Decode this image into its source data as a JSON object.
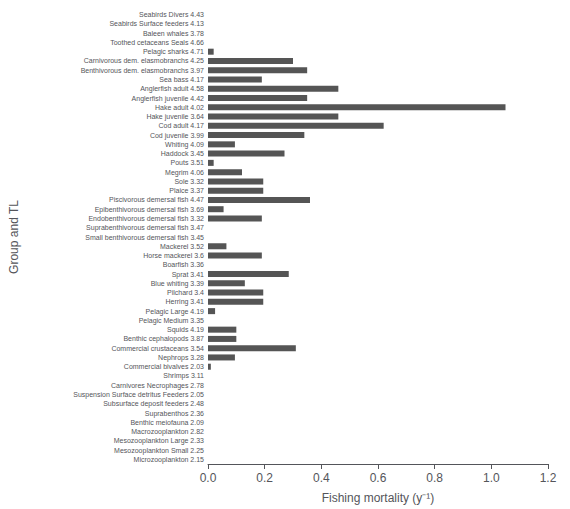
{
  "chart_data": {
    "type": "bar",
    "orientation": "horizontal",
    "xlabel": "Fishing mortality (y⁻¹)",
    "ylabel": "Group and TL",
    "categories": [
      "Seabirds Divers 4.43",
      "Seabirds Surface feeders 4.13",
      "Baleen whales 3.78",
      "Toothed cetaceans Seals 4.66",
      "Pelagic sharks 4.71",
      "Carnivorous dem. elasmobranchs 4.25",
      "Benthivorous dem. elasmobranchs 3.97",
      "Sea bass 4.17",
      "Anglerfish adult 4.58",
      "Anglerfish juvenile 4.42",
      "Hake adult 4.02",
      "Hake juvenile 3.64",
      "Cod adult 4.17",
      "Cod juvenile 3.99",
      "Whiting 4.09",
      "Haddock 3.45",
      "Pouts 3.51",
      "Megrim 4.06",
      "Sole 3.32",
      "Plaice 3.37",
      "Piscivorous demersal fish 4.47",
      "Epibenthivorous demersal fish 3.69",
      "Endobenthivorous demersal fish 3.32",
      "Suprabenthivorous demersal fish 3.47",
      "Small benthivorous demersal fish 3.45",
      "Mackerel 3.52",
      "Horse mackerel 3.6",
      "Boarfish 3.36",
      "Sprat 3.41",
      "Blue whiting 3.39",
      "Pilchard 3.4",
      "Herring 3.41",
      "Pelagic Large 4.19",
      "Pelagic Medium 3.35",
      "Squids 4.19",
      "Benthic cephalopods 3.87",
      "Commercial crustaceans 3.54",
      "Nephrops 3.28",
      "Commercial bivalves 2.03",
      "Shrimps 3.11",
      "Carnivores Necrophages 2.78",
      "Suspension Surface detritus Feeders 2.05",
      "Subsurface deposit feeders 2.48",
      "Suprabenthos 2.36",
      "Benthic meiofauna 2.09",
      "Macrozooplankton 2.82",
      "Mesozooplankton Large 2.33",
      "Mesozooplankton Small 2.25",
      "Microzooplankton 2.15"
    ],
    "values": [
      0.0,
      0.0,
      0.0,
      0.0,
      0.02,
      0.3,
      0.35,
      0.19,
      0.46,
      0.35,
      1.05,
      0.46,
      0.62,
      0.34,
      0.095,
      0.27,
      0.02,
      0.12,
      0.195,
      0.195,
      0.36,
      0.055,
      0.19,
      0.0,
      0.0,
      0.065,
      0.19,
      0.0,
      0.285,
      0.13,
      0.195,
      0.195,
      0.025,
      0.0,
      0.1,
      0.1,
      0.31,
      0.095,
      0.01,
      0.0,
      0.0,
      0.0,
      0.0,
      0.0,
      0.0,
      0.0,
      0.0,
      0.0,
      0.0
    ],
    "color": "#555555",
    "xlim": [
      0,
      1.2
    ],
    "xticks": [
      {
        "value": 0.0,
        "label": "0.0"
      },
      0.2,
      0.4,
      0.6,
      0.8,
      {
        "value": 1.0,
        "label": "1.0"
      },
      1.2
    ],
    "grid": false
  }
}
